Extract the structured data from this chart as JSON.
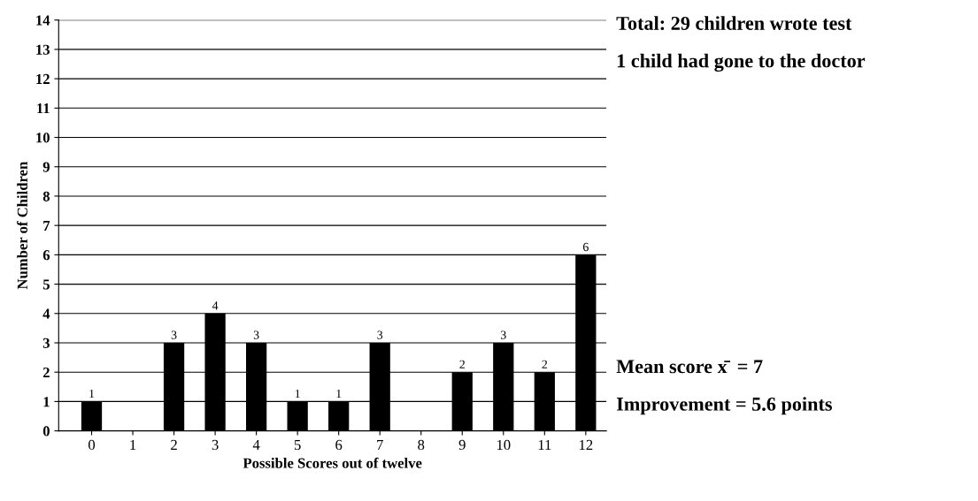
{
  "chart_data": {
    "type": "bar",
    "categories": [
      "0",
      "1",
      "2",
      "3",
      "4",
      "5",
      "6",
      "7",
      "8",
      "9",
      "10",
      "11",
      "12"
    ],
    "values": [
      1,
      0,
      3,
      4,
      3,
      1,
      1,
      3,
      0,
      2,
      3,
      2,
      6
    ],
    "value_labels": [
      "1",
      null,
      "3",
      "4",
      "3",
      "1",
      "1",
      "3",
      null,
      "2",
      "3",
      "2",
      "6"
    ],
    "color": "#000000",
    "xlabel": "Possible Scores out of twelve",
    "ylabel": "Number of Children",
    "ylim": [
      0,
      14
    ],
    "yticks": [
      0,
      1,
      2,
      3,
      4,
      5,
      6,
      7,
      8,
      9,
      10,
      11,
      12,
      13,
      14
    ],
    "grid": "y",
    "annotations": [
      "Total: 29 children wrote test",
      "1 child had gone to the doctor",
      "Mean score x̄  = 7",
      "Improvement = 5.6 points"
    ]
  }
}
